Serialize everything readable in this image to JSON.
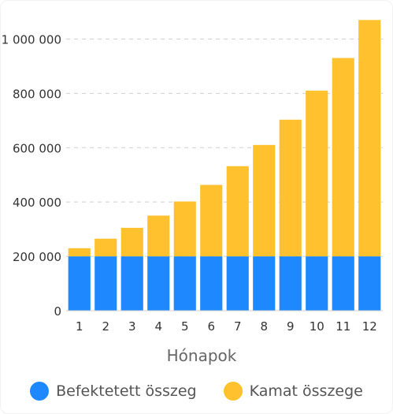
{
  "chart_data": {
    "type": "bar",
    "stacked": true,
    "categories": [
      "1",
      "2",
      "3",
      "4",
      "5",
      "6",
      "7",
      "8",
      "9",
      "10",
      "11",
      "12"
    ],
    "series": [
      {
        "name": "Befektetett összeg",
        "color": "#1e88ff",
        "values": [
          200000,
          200000,
          200000,
          200000,
          200000,
          200000,
          200000,
          200000,
          200000,
          200000,
          200000,
          200000
        ]
      },
      {
        "name": "Kamat összege",
        "color": "#ffc12e",
        "values": [
          30000,
          65000,
          105000,
          150000,
          202000,
          263000,
          332000,
          410000,
          503000,
          610000,
          730000,
          870000
        ]
      }
    ],
    "xlabel": "Hónapok",
    "ylabel": "",
    "ylim": [
      0,
      1100000
    ],
    "yticks": [
      {
        "value": 0,
        "label": "0"
      },
      {
        "value": 200000,
        "label": "200 000"
      },
      {
        "value": 400000,
        "label": "400 000"
      },
      {
        "value": 600000,
        "label": "600 000"
      },
      {
        "value": 800000,
        "label": "800 000"
      },
      {
        "value": 1000000,
        "label": "1 000 000"
      }
    ],
    "grid": true,
    "legend_position": "bottom"
  }
}
